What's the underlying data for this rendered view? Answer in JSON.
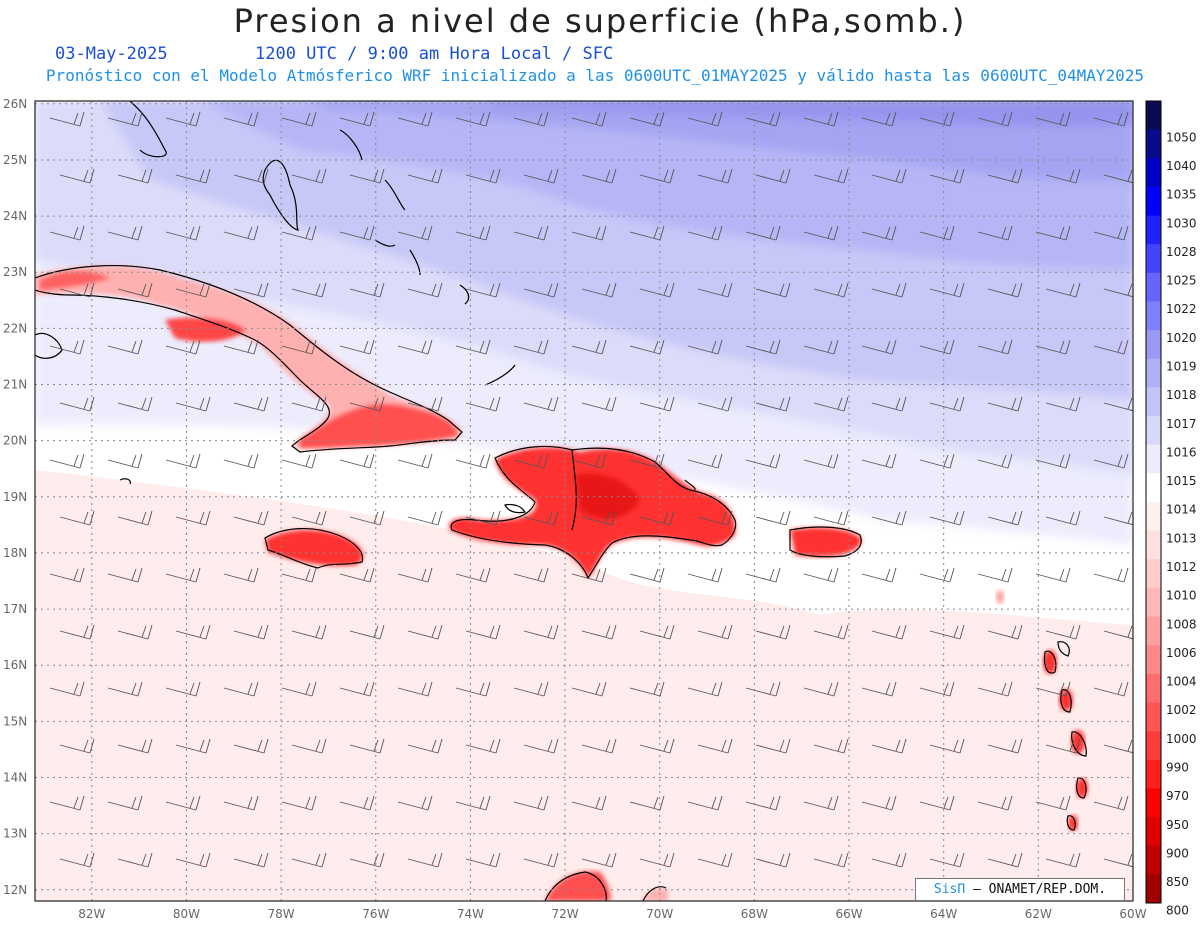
{
  "header": {
    "title": "Presion a nivel de superficie (hPa,somb.)",
    "date": "03-May-2025",
    "time": "1200 UTC / 9:00 am Hora Local / SFC",
    "model_info": "Pronóstico con el Modelo Atmósferico WRF inicializado a las 0600UTC_01MAY2025 y válido hasta las  0600UTC_04MAY2025"
  },
  "axes": {
    "lon_labels": [
      "82W",
      "80W",
      "78W",
      "76W",
      "74W",
      "72W",
      "70W",
      "68W",
      "66W",
      "64W",
      "62W",
      "60W"
    ],
    "lat_labels": [
      "26N",
      "25N",
      "24N",
      "23N",
      "22N",
      "21N",
      "20N",
      "19N",
      "18N",
      "17N",
      "16N",
      "15N",
      "14N",
      "13N",
      "12N"
    ]
  },
  "legend": {
    "levels": [
      "1050",
      "1040",
      "1035",
      "1030",
      "1028",
      "1025",
      "1022",
      "1020",
      "1019",
      "1018",
      "1017",
      "1016",
      "1015",
      "1014",
      "1013",
      "1012",
      "1010",
      "1008",
      "1006",
      "1004",
      "1002",
      "1000",
      "990",
      "970",
      "950",
      "900",
      "850",
      "800"
    ],
    "colors": [
      "#0b0b55",
      "#0a0a8c",
      "#0000c8",
      "#0000ff",
      "#2222ff",
      "#4444ff",
      "#6666ff",
      "#8080ff",
      "#9a9af5",
      "#b0b0f5",
      "#c4c4f8",
      "#d8d8fa",
      "#ececfd",
      "#ffffff",
      "#fff0f0",
      "#ffe0e0",
      "#ffcccc",
      "#ffb8b8",
      "#ffa0a0",
      "#ff8888",
      "#ff6e6e",
      "#ff5555",
      "#ff3c3c",
      "#ff2020",
      "#ff0000",
      "#e00000",
      "#c00000",
      "#a00000"
    ]
  },
  "credit": {
    "brand": "SisΠ",
    "text": " – ONAMET/REP.DOM."
  }
}
